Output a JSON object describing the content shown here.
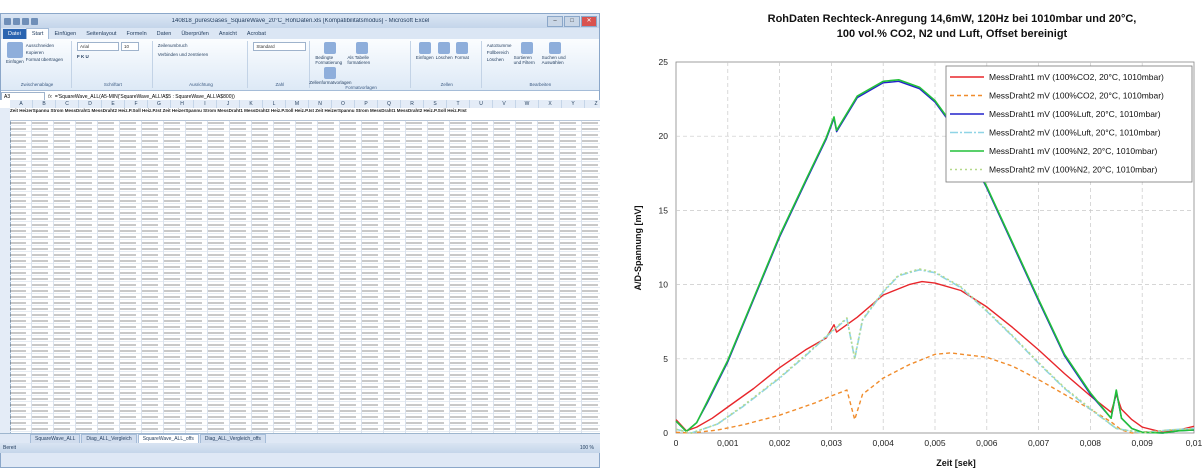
{
  "excel": {
    "title": "140818_puresGases_SquareWave_20°C_RohDaten.xls [Kompatibilitätsmodus] - Microsoft Excel",
    "window_buttons": [
      "–",
      "□",
      "✕"
    ],
    "tabs": [
      "Datei",
      "Start",
      "Einfügen",
      "Seitenlayout",
      "Formeln",
      "Daten",
      "Überprüfen",
      "Ansicht",
      "Acrobat"
    ],
    "active_tab": "Start",
    "ribbon": {
      "clipboard": {
        "paste": "Einfügen",
        "cut": "Ausschneiden",
        "copy": "Kopieren",
        "format": "Format übertragen",
        "label": "Zwischenablage"
      },
      "font": {
        "name": "Arial",
        "size": "10",
        "label": "Schriftart"
      },
      "alignment": {
        "wrap": "Zeilenumbruch",
        "merge": "Verbinden und zentrieren",
        "label": "Ausrichtung"
      },
      "number": {
        "format": "Standard",
        "label": "Zahl"
      },
      "styles": {
        "conditional": "Bedingte Formatierung",
        "table": "Als Tabelle formatieren",
        "cell": "Zellenformatvorlagen",
        "label": "Formatvorlagen"
      },
      "cells": {
        "insert": "Einfügen",
        "delete": "Löschen",
        "format": "Format",
        "label": "Zellen"
      },
      "editing": {
        "autosum": "AutoSumme",
        "fill": "Füllbereich",
        "clear": "Löschen",
        "sort": "Sortieren und Filtern",
        "find": "Suchen und Auswählen",
        "label": "Bearbeiten"
      }
    },
    "name_box": "A3",
    "formula": "='SquareWave_ALL(A5-MIN('SquareWave_ALL!A$5 : SquareWave_ALL!A$800))",
    "header_row": "Zeit    HeizerSpannu Strom    MessDraht1 MessDraht2 Heiz.P.Soll Heiz.P.Ist  Zeit    HeizerSpannu Strom   MessDraht1 MessDraht2 Heiz.P.Soll Heiz.P.Ist  Zeit   HeizerSpannu Strom  MessDraht1 MessDraht2 Heiz.P.Soll Heiz.P.Ist",
    "sheet_tabs": [
      "SquareWave_ALL",
      "Diag_ALL_Vergleich",
      "SquareWave_ALL_offs",
      "Diag_ALL_Vergleich_offs"
    ],
    "active_sheet": "SquareWave_ALL_offs",
    "status": "Bereit",
    "zoom": "100 %"
  },
  "chart_data": {
    "type": "line",
    "title": "RohDaten Rechteck-Anregung 14,6mW, 120Hz bei 1010mbar und 20°C,",
    "subtitle": "100 vol.% CO2, N2 und Luft, Offset bereinigt",
    "xlabel": "Zeit [sek]",
    "ylabel": "A/D-Spannung [mV]",
    "xlim": [
      0,
      0.01
    ],
    "ylim": [
      0,
      25
    ],
    "x_ticks": [
      "0",
      "0,001",
      "0,002",
      "0,003",
      "0,004",
      "0,005",
      "0,006",
      "0,007",
      "0,008",
      "0,009",
      "0,01"
    ],
    "y_ticks": [
      "0",
      "5",
      "10",
      "15",
      "20",
      "25"
    ],
    "grid": "dashed vertical and horizontal",
    "legend_position": "top-right",
    "series": [
      {
        "name": "MessDraht1 mV (100%CO2, 20°C, 1010mbar)",
        "color": "#e8262b",
        "dash": "solid",
        "points": [
          [
            0,
            0.9
          ],
          [
            0.0002,
            0.15
          ],
          [
            0.0004,
            0.4
          ],
          [
            0.0007,
            1.0
          ],
          [
            0.001,
            1.75
          ],
          [
            0.0015,
            3.0
          ],
          [
            0.002,
            4.4
          ],
          [
            0.0025,
            5.6
          ],
          [
            0.0029,
            6.4
          ],
          [
            0.00305,
            7.3
          ],
          [
            0.0031,
            6.8
          ],
          [
            0.0035,
            7.8
          ],
          [
            0.004,
            9.3
          ],
          [
            0.0045,
            10.0
          ],
          [
            0.00475,
            10.2
          ],
          [
            0.005,
            10.1
          ],
          [
            0.0055,
            9.6
          ],
          [
            0.006,
            8.5
          ],
          [
            0.0065,
            7.1
          ],
          [
            0.007,
            5.6
          ],
          [
            0.0075,
            4.0
          ],
          [
            0.008,
            2.5
          ],
          [
            0.0084,
            1.4
          ],
          [
            0.0085,
            2.6
          ],
          [
            0.0086,
            1.6
          ],
          [
            0.0088,
            0.9
          ],
          [
            0.009,
            0.4
          ],
          [
            0.0094,
            0.05
          ],
          [
            0.0097,
            0.2
          ],
          [
            0.01,
            0.45
          ]
        ]
      },
      {
        "name": "MessDraht2 mV (100%CO2, 20°C, 1010mbar)",
        "color": "#f08c2c",
        "dash": "4,3",
        "points": [
          [
            0,
            0.05
          ],
          [
            0.0003,
            0.0
          ],
          [
            0.0008,
            0.2
          ],
          [
            0.0013,
            0.55
          ],
          [
            0.002,
            1.2
          ],
          [
            0.0027,
            2.05
          ],
          [
            0.003,
            2.5
          ],
          [
            0.0033,
            2.9
          ],
          [
            0.00345,
            0.9
          ],
          [
            0.0036,
            2.6
          ],
          [
            0.004,
            3.7
          ],
          [
            0.0045,
            4.6
          ],
          [
            0.005,
            5.3
          ],
          [
            0.0053,
            5.4
          ],
          [
            0.006,
            5.1
          ],
          [
            0.0065,
            4.5
          ],
          [
            0.007,
            3.6
          ],
          [
            0.0075,
            2.6
          ],
          [
            0.008,
            1.6
          ],
          [
            0.0084,
            0.75
          ],
          [
            0.0086,
            0.2
          ],
          [
            0.0088,
            0.0
          ],
          [
            0.0092,
            0.1
          ],
          [
            0.0096,
            0.2
          ],
          [
            0.01,
            0.2
          ]
        ]
      },
      {
        "name": "MessDraht1 mV (100%Luft, 20°C, 1010mbar)",
        "color": "#2222cc",
        "dash": "solid",
        "points": [
          [
            0,
            0.8
          ],
          [
            0.0002,
            0.1
          ],
          [
            0.0004,
            0.7
          ],
          [
            0.0006,
            2.0
          ],
          [
            0.001,
            4.8
          ],
          [
            0.0015,
            9.0
          ],
          [
            0.002,
            13.2
          ],
          [
            0.0025,
            16.9
          ],
          [
            0.0029,
            19.8
          ],
          [
            0.00305,
            21.2
          ],
          [
            0.0031,
            20.3
          ],
          [
            0.0035,
            22.6
          ],
          [
            0.004,
            23.6
          ],
          [
            0.0043,
            23.7
          ],
          [
            0.0047,
            23.2
          ],
          [
            0.005,
            22.3
          ],
          [
            0.0055,
            19.9
          ],
          [
            0.006,
            16.5
          ],
          [
            0.0065,
            12.7
          ],
          [
            0.007,
            8.9
          ],
          [
            0.0075,
            5.2
          ],
          [
            0.008,
            2.6
          ],
          [
            0.0084,
            1.0
          ],
          [
            0.0085,
            2.8
          ],
          [
            0.0086,
            1.0
          ],
          [
            0.0088,
            0.3
          ],
          [
            0.009,
            0.05
          ],
          [
            0.0094,
            0.0
          ],
          [
            0.0097,
            0.15
          ],
          [
            0.01,
            0.2
          ]
        ]
      },
      {
        "name": "MessDraht2 mV (100%Luft, 20°C, 1010mbar)",
        "color": "#8fd4e6",
        "dash": "8,2,2,2",
        "points": [
          [
            0,
            0.25
          ],
          [
            0.0003,
            0.0
          ],
          [
            0.0008,
            0.6
          ],
          [
            0.0013,
            1.8
          ],
          [
            0.002,
            3.7
          ],
          [
            0.0025,
            5.2
          ],
          [
            0.003,
            6.8
          ],
          [
            0.0033,
            7.7
          ],
          [
            0.00345,
            5.0
          ],
          [
            0.0036,
            7.6
          ],
          [
            0.004,
            9.5
          ],
          [
            0.0043,
            10.6
          ],
          [
            0.0047,
            11.0
          ],
          [
            0.005,
            10.8
          ],
          [
            0.0055,
            9.8
          ],
          [
            0.006,
            8.2
          ],
          [
            0.0065,
            6.5
          ],
          [
            0.007,
            4.7
          ],
          [
            0.0075,
            3.0
          ],
          [
            0.008,
            1.6
          ],
          [
            0.0085,
            0.3
          ],
          [
            0.009,
            0.0
          ],
          [
            0.0095,
            0.2
          ],
          [
            0.01,
            0.3
          ]
        ]
      },
      {
        "name": "MessDraht1 mV (100%N2, 20°C, 1010mbar)",
        "color": "#22c03a",
        "dash": "solid",
        "points": [
          [
            0,
            0.8
          ],
          [
            0.0002,
            0.1
          ],
          [
            0.0004,
            0.7
          ],
          [
            0.0006,
            2.1
          ],
          [
            0.001,
            4.9
          ],
          [
            0.0015,
            9.1
          ],
          [
            0.002,
            13.3
          ],
          [
            0.0025,
            17.0
          ],
          [
            0.0029,
            19.9
          ],
          [
            0.00305,
            21.3
          ],
          [
            0.0031,
            20.4
          ],
          [
            0.0035,
            22.7
          ],
          [
            0.004,
            23.7
          ],
          [
            0.0043,
            23.8
          ],
          [
            0.0047,
            23.3
          ],
          [
            0.005,
            22.4
          ],
          [
            0.0055,
            20.0
          ],
          [
            0.006,
            16.6
          ],
          [
            0.0065,
            12.8
          ],
          [
            0.007,
            9.0
          ],
          [
            0.0075,
            5.3
          ],
          [
            0.008,
            2.7
          ],
          [
            0.0084,
            1.0
          ],
          [
            0.0085,
            2.9
          ],
          [
            0.0086,
            1.0
          ],
          [
            0.0088,
            0.3
          ],
          [
            0.009,
            0.05
          ],
          [
            0.0094,
            0.0
          ],
          [
            0.0097,
            0.15
          ],
          [
            0.01,
            0.2
          ]
        ]
      },
      {
        "name": "MessDraht2 mV (100%N2, 20°C, 1010mbar)",
        "color": "#b5d98a",
        "dash": "2,3",
        "points": [
          [
            0,
            0.25
          ],
          [
            0.0003,
            0.0
          ],
          [
            0.0008,
            0.6
          ],
          [
            0.0013,
            1.85
          ],
          [
            0.002,
            3.75
          ],
          [
            0.0025,
            5.25
          ],
          [
            0.003,
            6.85
          ],
          [
            0.0033,
            7.75
          ],
          [
            0.00345,
            5.05
          ],
          [
            0.0036,
            7.65
          ],
          [
            0.004,
            9.55
          ],
          [
            0.0043,
            10.65
          ],
          [
            0.0047,
            11.05
          ],
          [
            0.005,
            10.85
          ],
          [
            0.0055,
            9.85
          ],
          [
            0.006,
            8.25
          ],
          [
            0.0065,
            6.55
          ],
          [
            0.007,
            4.75
          ],
          [
            0.0075,
            3.05
          ],
          [
            0.008,
            1.65
          ],
          [
            0.0085,
            0.3
          ],
          [
            0.009,
            0.0
          ],
          [
            0.0095,
            0.2
          ],
          [
            0.01,
            0.3
          ]
        ]
      }
    ]
  }
}
